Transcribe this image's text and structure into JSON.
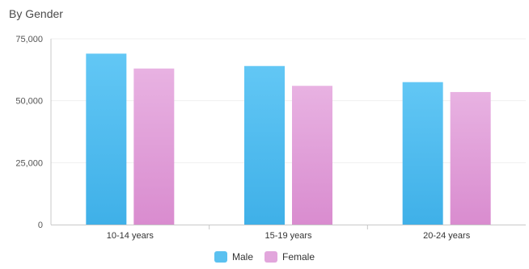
{
  "chart_data": {
    "type": "bar",
    "title": "By Gender",
    "categories": [
      "10-14 years",
      "15-19 years",
      "20-24 years"
    ],
    "series": [
      {
        "name": "Male",
        "values": [
          69000,
          64000,
          57500
        ],
        "color": "#5bc1f0"
      },
      {
        "name": "Female",
        "values": [
          63000,
          56000,
          53500
        ],
        "color": "#e2a6dc"
      }
    ],
    "yticks": [
      0,
      25000,
      50000,
      75000
    ],
    "ytick_labels": [
      "0",
      "25,000",
      "50,000",
      "75,000"
    ],
    "ylim": [
      0,
      75000
    ],
    "grid": true,
    "legend": "bottom-center"
  }
}
